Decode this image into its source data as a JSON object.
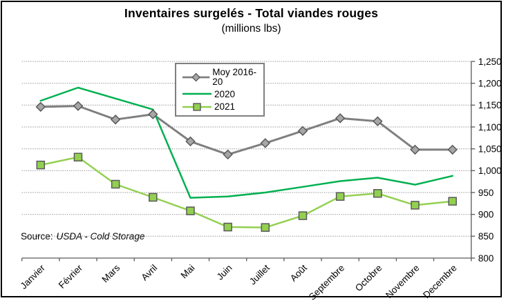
{
  "figure": {
    "title": "Inventaires surgelés - Total viandes rouges",
    "subtitle": "(millions lbs)",
    "source_prefix": "Source:",
    "source_name": "USDA - Cold Storage",
    "background": "#FFFFFF",
    "border_color": "#000000"
  },
  "chart_data": {
    "type": "line",
    "title": "Inventaires surgelés - Total viandes rouges",
    "subtitle": "(millions lbs)",
    "categories": [
      "Janvier",
      "Février",
      "Mars",
      "Avril",
      "Mai",
      "Juin",
      "Juillet",
      "Août",
      "Septembre",
      "Octobre",
      "Novembre",
      "Decembre"
    ],
    "series": [
      {
        "name": "Moy 2016-20",
        "color": "#7F7F7F",
        "line_width": 3,
        "marker": "diamond",
        "marker_fill": "#A6A6A6",
        "marker_stroke": "#595959",
        "values": [
          1146,
          1148,
          1117,
          1129,
          1067,
          1037,
          1063,
          1091,
          1120,
          1113,
          1048,
          1048
        ]
      },
      {
        "name": "2020",
        "color": "#00B050",
        "line_width": 2.5,
        "marker": "none",
        "marker_fill": "",
        "marker_stroke": "",
        "values": [
          1160,
          1190,
          1165,
          1140,
          938,
          941,
          950,
          963,
          976,
          984,
          968,
          988
        ]
      },
      {
        "name": "2021",
        "color": "#92D050",
        "line_width": 2.5,
        "marker": "square",
        "marker_fill": "#92D050",
        "marker_stroke": "#595959",
        "values": [
          1013,
          1031,
          969,
          939,
          908,
          871,
          870,
          897,
          941,
          948,
          921,
          930
        ]
      }
    ],
    "xlabel": "",
    "ylabel": "",
    "ylim": [
      800,
      1250
    ],
    "ytick_step": 50,
    "ytick_labels": [
      "800",
      "850",
      "900",
      "950",
      "1,000",
      "1,050",
      "1,100",
      "1,150",
      "1,200",
      "1,250"
    ],
    "grid": "horizontal-dotted",
    "grid_color": "#8F8F8F",
    "axis_color": "#595959",
    "legend_position": "inside-top-left"
  }
}
